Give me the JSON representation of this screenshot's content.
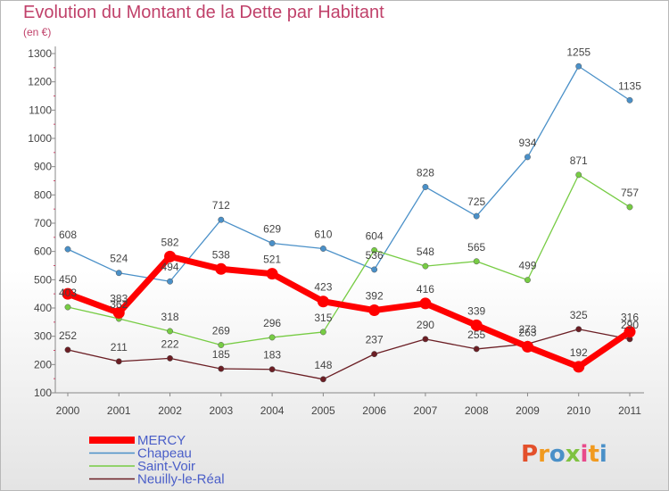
{
  "title": "Evolution du Montant de la Dette par Habitant",
  "subtitle": "(en €)",
  "brand": "Proxiti",
  "chart_data": {
    "type": "line",
    "x": [
      "2000",
      "2001",
      "2002",
      "2003",
      "2004",
      "2005",
      "2006",
      "2007",
      "2008",
      "2009",
      "2010",
      "2011"
    ],
    "ylim": [
      100,
      1300
    ],
    "yticks": [
      100,
      200,
      300,
      400,
      500,
      600,
      700,
      800,
      900,
      1000,
      1100,
      1200,
      1300
    ],
    "grid": false,
    "legend_position": "bottom-left",
    "series": [
      {
        "name": "MERCY",
        "color": "#ff0000",
        "values": [
          450,
          383,
          582,
          538,
          521,
          423,
          392,
          416,
          339,
          263,
          192,
          316
        ]
      },
      {
        "name": "Chapeau",
        "color": "#4a90c8",
        "values": [
          608,
          524,
          494,
          712,
          629,
          610,
          536,
          828,
          725,
          934,
          1255,
          1135
        ]
      },
      {
        "name": "Saint-Voir",
        "color": "#77cc44",
        "values": [
          403,
          362,
          318,
          269,
          296,
          315,
          604,
          548,
          565,
          499,
          871,
          757
        ]
      },
      {
        "name": "Neuilly-le-Réal",
        "color": "#6b1e24",
        "values": [
          252,
          211,
          222,
          185,
          183,
          148,
          237,
          290,
          255,
          273,
          325,
          290
        ]
      }
    ]
  }
}
